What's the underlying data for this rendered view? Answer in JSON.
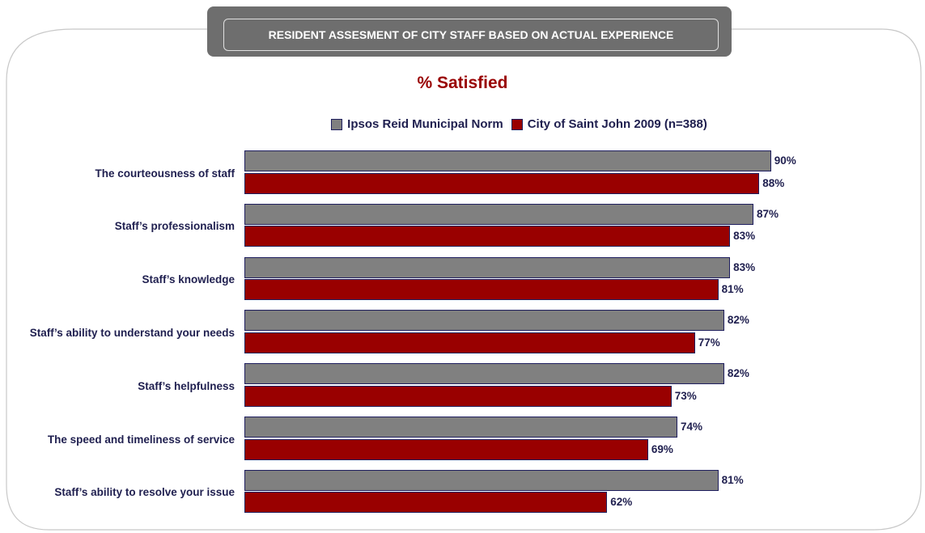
{
  "header": {
    "title": "RESIDENT ASSESMENT OF CITY STAFF BASED ON ACTUAL EXPERIENCE"
  },
  "chart_data": {
    "type": "bar",
    "orientation": "horizontal",
    "title": "% Satisfied",
    "categories": [
      "The courteousness of staff",
      "Staff’s professionalism",
      "Staff’s knowledge",
      "Staff’s ability to understand your needs",
      "Staff’s helpfulness",
      "The speed and timeliness of service",
      "Staff’s ability to resolve your issue"
    ],
    "series": [
      {
        "name": "Ipsos Reid Municipal Norm",
        "color": "#808080",
        "values": [
          90,
          87,
          83,
          82,
          82,
          74,
          81
        ],
        "value_labels": [
          "90%",
          "87%",
          "83%",
          "82%",
          "82%",
          "74%",
          "81%"
        ]
      },
      {
        "name": "City of Saint John 2009 (n=388)",
        "color": "#990000",
        "values": [
          88,
          83,
          81,
          77,
          73,
          69,
          62
        ],
        "value_labels": [
          "88%",
          "83%",
          "81%",
          "77%",
          "73%",
          "69%",
          "62%"
        ]
      }
    ],
    "legend": "top"
  }
}
